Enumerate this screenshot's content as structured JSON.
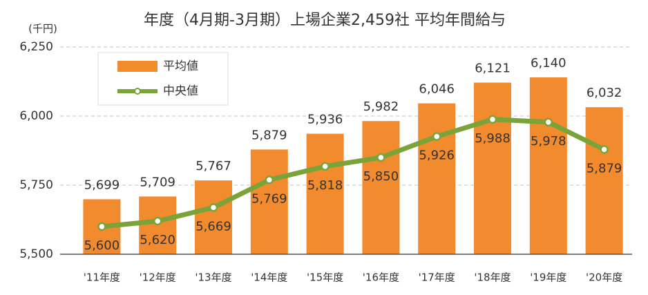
{
  "chart_data": {
    "type": "combo",
    "title": "年度（4月期-3月期）上場企業2,459社 平均年間給与",
    "y_label": "(千円)",
    "categories": [
      "'11年度",
      "'12年度",
      "'13年度",
      "'14年度",
      "'15年度",
      "'16年度",
      "'17年度",
      "'18年度",
      "'19年度",
      "'20年度"
    ],
    "series": [
      {
        "name": "平均値",
        "type": "bar",
        "color": "#f28a2e",
        "values": [
          5699,
          5709,
          5767,
          5879,
          5936,
          5982,
          6046,
          6121,
          6140,
          6032
        ],
        "value_labels": [
          "5,699",
          "5,709",
          "5,767",
          "5,879",
          "5,936",
          "5,982",
          "6,046",
          "6,121",
          "6,140",
          "6,032"
        ]
      },
      {
        "name": "中央値",
        "type": "line",
        "color": "#7aa33a",
        "values": [
          5600,
          5620,
          5669,
          5769,
          5818,
          5850,
          5926,
          5988,
          5978,
          5879
        ],
        "value_labels": [
          "5,600",
          "5,620",
          "5,669",
          "5,769",
          "5,818",
          "5,850",
          "5,926",
          "5,988",
          "5,978",
          "5,879"
        ]
      }
    ],
    "ylim": [
      5500,
      6250
    ],
    "yticks": [
      {
        "value": 5500,
        "label": "5,500"
      },
      {
        "value": 5750,
        "label": "5,750"
      },
      {
        "value": 6000,
        "label": "6,000"
      },
      {
        "value": 6250,
        "label": "6,250"
      }
    ],
    "grid": true,
    "legend": "upper left"
  }
}
